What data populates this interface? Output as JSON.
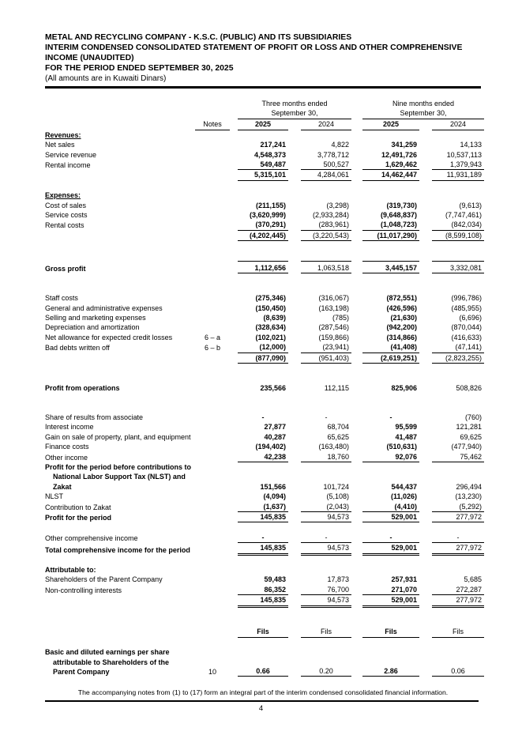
{
  "header": {
    "company": "METAL AND RECYCLING COMPANY - K.S.C. (PUBLIC) AND ITS SUBSIDIARIES",
    "statement_title": "INTERIM CONDENSED CONSOLIDATED STATEMENT OF PROFIT OR LOSS AND OTHER COMPREHENSIVE INCOME (UNAUDITED)",
    "period": "FOR THE PERIOD ENDED SEPTEMBER 30, 2025",
    "currency_note": "(All amounts are in Kuwaiti Dinars)"
  },
  "table": {
    "notes_header": "Notes",
    "col_groups": [
      {
        "title": "Three months ended",
        "subtitle": "September 30,"
      },
      {
        "title": "Nine months ended",
        "subtitle": "September 30,"
      }
    ],
    "year_headers": [
      "2025",
      "2024",
      "2025",
      "2024"
    ],
    "rows": [
      {
        "type": "section",
        "label": "Revenues:",
        "underline": true
      },
      {
        "type": "data",
        "label": "Net sales",
        "values": [
          "217,241",
          "4,822",
          "341,259",
          "14,133"
        ]
      },
      {
        "type": "data",
        "label": "Service revenue",
        "values": [
          "4,548,373",
          "3,778,712",
          "12,491,726",
          "10,537,113"
        ]
      },
      {
        "type": "data",
        "label": "Rental income",
        "values": [
          "549,487",
          "500,527",
          "1,629,462",
          "1,379,943"
        ],
        "line_below": true
      },
      {
        "type": "data",
        "label": "",
        "values": [
          "5,315,101",
          "4,284,061",
          "14,462,447",
          "11,931,189"
        ],
        "line_below": true
      },
      {
        "type": "spacer"
      },
      {
        "type": "section",
        "label": "Expenses:",
        "underline": true
      },
      {
        "type": "data",
        "label": "Cost of sales",
        "values": [
          "(211,155)",
          "(3,298)",
          "(319,730)",
          "(9,613)"
        ]
      },
      {
        "type": "data",
        "label": "Service costs",
        "values": [
          "(3,620,999)",
          "(2,933,284)",
          "(9,648,837)",
          "(7,747,461)"
        ]
      },
      {
        "type": "data",
        "label": "Rental costs",
        "values": [
          "(370,291)",
          "(283,961)",
          "(1,048,723)",
          "(842,034)"
        ],
        "line_below": true
      },
      {
        "type": "data",
        "label": "",
        "values": [
          "(4,202,445)",
          "(3,220,543)",
          "(11,017,290)",
          "(8,599,108)"
        ],
        "line_below": true
      },
      {
        "type": "spacer"
      },
      {
        "type": "spacer"
      },
      {
        "type": "data",
        "label": "Gross profit",
        "bold": true,
        "values": [
          "1,112,656",
          "1,063,518",
          "3,445,157",
          "3,332,081"
        ],
        "line_above": true,
        "line_below": true
      },
      {
        "type": "spacer"
      },
      {
        "type": "spacer"
      },
      {
        "type": "data",
        "label": "Staff costs",
        "values": [
          "(275,346)",
          "(316,067)",
          "(872,551)",
          "(996,786)"
        ]
      },
      {
        "type": "data",
        "label": "General and administrative expenses",
        "values": [
          "(150,450)",
          "(163,198)",
          "(426,596)",
          "(485,955)"
        ]
      },
      {
        "type": "data",
        "label": "Selling and marketing expenses",
        "values": [
          "(8,639)",
          "(785)",
          "(21,630)",
          "(6,696)"
        ]
      },
      {
        "type": "data",
        "label": "Depreciation and amortization",
        "values": [
          "(328,634)",
          "(287,546)",
          "(942,200)",
          "(870,044)"
        ]
      },
      {
        "type": "data",
        "label": "Net allowance for expected credit losses",
        "note": "6 – a",
        "values": [
          "(102,021)",
          "(159,866)",
          "(314,866)",
          "(416,633)"
        ]
      },
      {
        "type": "data",
        "label": "Bad debts written off",
        "note": "6 – b",
        "values": [
          "(12,000)",
          "(23,941)",
          "(41,408)",
          "(47,141)"
        ],
        "line_below": true
      },
      {
        "type": "data",
        "label": "",
        "values": [
          "(877,090)",
          "(951,403)",
          "(2,619,251)",
          "(2,823,255)"
        ],
        "line_below": true
      },
      {
        "type": "spacer"
      },
      {
        "type": "spacer"
      },
      {
        "type": "data",
        "label": "Profit from operations",
        "bold": true,
        "values": [
          "235,566",
          "112,115",
          "825,906",
          "508,826"
        ]
      },
      {
        "type": "spacer"
      },
      {
        "type": "spacer"
      },
      {
        "type": "data",
        "label": "Share of results from associate",
        "values": [
          "-",
          "-",
          "-",
          "(760)"
        ]
      },
      {
        "type": "data",
        "label": "Interest income",
        "values": [
          "27,877",
          "68,704",
          "95,599",
          "121,281"
        ]
      },
      {
        "type": "data",
        "label": "Gain on sale of property, plant, and equipment",
        "values": [
          "40,287",
          "65,625",
          "41,487",
          "69,625"
        ]
      },
      {
        "type": "data",
        "label": "Finance costs",
        "values": [
          "(194,402)",
          "(163,480)",
          "(510,631)",
          "(477,940)"
        ]
      },
      {
        "type": "data",
        "label": "Other income",
        "values": [
          "42,238",
          "18,760",
          "92,076",
          "75,462"
        ],
        "line_below": true
      },
      {
        "type": "data",
        "lines": [
          "Profit for the period before contributions to",
          "National Labor Support Tax (NLST) and",
          "Zakat"
        ],
        "bold": true,
        "values": [
          "151,566",
          "101,724",
          "544,437",
          "296,494"
        ]
      },
      {
        "type": "data",
        "label": "NLST",
        "values": [
          "(4,094)",
          "(5,108)",
          "(11,026)",
          "(13,230)"
        ]
      },
      {
        "type": "data",
        "label": "Contribution to Zakat",
        "values": [
          "(1,637)",
          "(2,043)",
          "(4,410)",
          "(5,292)"
        ],
        "line_below": true
      },
      {
        "type": "data",
        "label": "Profit for the period",
        "bold": true,
        "values": [
          "145,835",
          "94,573",
          "529,001",
          "277,972"
        ],
        "line_below": true
      },
      {
        "type": "spacer"
      },
      {
        "type": "data",
        "label": "Other comprehensive income",
        "values": [
          "-",
          "-",
          "-",
          "-"
        ],
        "line_below": true
      },
      {
        "type": "data",
        "label": "Total comprehensive income for the period",
        "bold": true,
        "values": [
          "145,835",
          "94,573",
          "529,001",
          "277,972"
        ],
        "double_below": true
      },
      {
        "type": "spacer"
      },
      {
        "type": "section",
        "label": "Attributable to:"
      },
      {
        "type": "data",
        "label": "Shareholders of the Parent Company",
        "values": [
          "59,483",
          "17,873",
          "257,931",
          "5,685"
        ]
      },
      {
        "type": "data",
        "label": "Non-controlling interests",
        "values": [
          "86,352",
          "76,700",
          "271,070",
          "272,287"
        ],
        "line_below": true
      },
      {
        "type": "data",
        "label": "",
        "values": [
          "145,835",
          "94,573",
          "529,001",
          "277,972"
        ],
        "double_below": true
      },
      {
        "type": "spacer"
      },
      {
        "type": "spacer"
      },
      {
        "type": "data",
        "label": "",
        "values": [
          "Fils",
          "Fils",
          "Fils",
          "Fils"
        ],
        "center": true,
        "line_below": true
      },
      {
        "type": "spacer"
      },
      {
        "type": "data",
        "lines": [
          "Basic and diluted earnings per share",
          "attributable to Shareholders of the",
          "Parent Company"
        ],
        "bold": true,
        "note": "10",
        "values": [
          "0.66",
          "0.20",
          "2.86",
          "0.06"
        ],
        "center": true,
        "line_below": true
      }
    ]
  },
  "footer": {
    "note": "The accompanying notes from (1) to (17) form an integral part of the interim condensed consolidated financial information.",
    "page_number": "4"
  }
}
